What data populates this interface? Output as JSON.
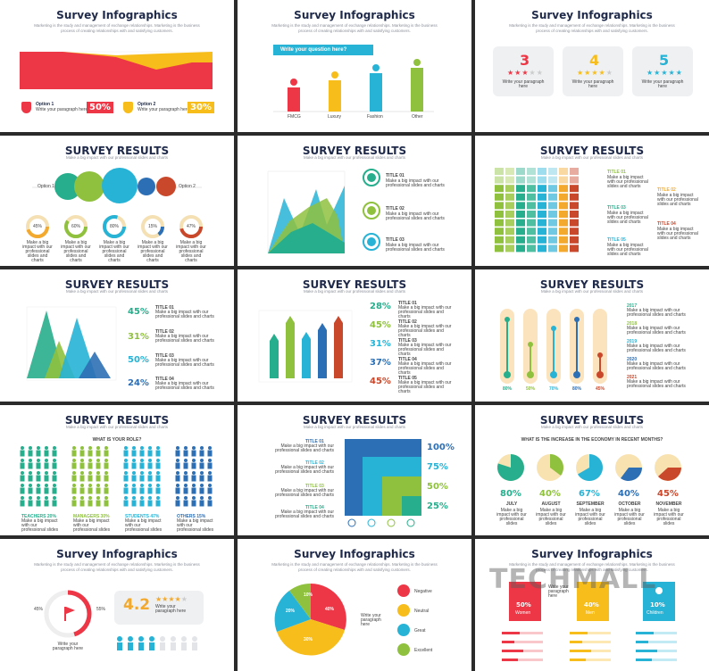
{
  "watermark": "TECHMALL",
  "slides": {
    "s1": {
      "title": "Survey Infographics",
      "sub": "Marketing is the study and management of exchange relationships. Marketing is the business process of creating relationships with and satisfying customers.",
      "opt1": "Option 1",
      "opt1_pct": "50%",
      "opt2": "Option 2",
      "opt2_pct": "30%",
      "desc": "Write your paragraph here"
    },
    "s2": {
      "title": "Survey Infographics",
      "sub": "Marketing is the study and management of exchange relationships. Marketing is the business process of creating relationships with and satisfying customers.",
      "question": "Write your question here?",
      "cats": [
        "FMCG",
        "Luxury",
        "Fashion",
        "Other"
      ],
      "values": [
        38,
        55,
        75,
        90
      ]
    },
    "s3": {
      "title": "Survey Infographics",
      "sub": "Marketing is the study and management of exchange relationships. Marketing is the business process of creating relationships with and satisfying customers.",
      "ratings": [
        "3",
        "4",
        "5"
      ],
      "desc": "Write your paragraph here"
    },
    "s4": {
      "title": "SURVEY RESULTS",
      "sub": "Make a big impact with our professional slides and charts",
      "opt1": "Option 1",
      "opt2": "Option 2",
      "pcts": [
        "45%",
        "60%",
        "80%",
        "15%",
        "47%"
      ],
      "desc": "Make a big impact with our professional slides and charts"
    },
    "s5": {
      "title": "SURVEY RESULTS",
      "sub": "Make a big impact with our professional slides and charts",
      "items": [
        "TITLE 01",
        "TITLE 02",
        "TITLE 03"
      ],
      "desc": "Make a big impact with our professional slides and charts"
    },
    "s6": {
      "title": "SURVEY RESULTS",
      "sub": "Make a big impact with our professional slides and charts",
      "items": [
        "TITLE 01",
        "TITLE 02",
        "TITLE 03",
        "TITLE 04",
        "TITLE 05"
      ],
      "desc": "Make a big impact with our professional slides and charts"
    },
    "s7": {
      "title": "SURVEY RESULTS",
      "sub": "Make a big impact with our professional slides and charts",
      "pcts": [
        "45%",
        "31%",
        "50%",
        "24%"
      ],
      "items": [
        "TITLE 01",
        "TITLE 02",
        "TITLE 03",
        "TITLE 04"
      ],
      "desc": "Make a big impact with our professional slides and charts"
    },
    "s8": {
      "title": "SURVEY RESULTS",
      "sub": "Make a big impact with our professional slides and charts",
      "pcts": [
        "28%",
        "45%",
        "31%",
        "37%",
        "45%"
      ],
      "items": [
        "TITLE 01",
        "TITLE 02",
        "TITLE 03",
        "TITLE 04",
        "TITLE 05"
      ],
      "desc": "Make a big impact with our professional slides and charts"
    },
    "s9": {
      "title": "SURVEY RESULTS",
      "sub": "Make a big impact with our professional slides and charts",
      "pcts": [
        "80%",
        "50%",
        "70%",
        "80%",
        "45%"
      ],
      "items": [
        "2017",
        "2018",
        "2019",
        "2020",
        "2021"
      ],
      "desc": "Make a big impact with our professional slides and charts"
    },
    "s10": {
      "title": "SURVEY RESULTS",
      "sub": "Make a big impact with our professional slides and charts",
      "question": "WHAT IS YOUR ROLE?",
      "groups": [
        "TEACHERS 20%",
        "MANAGERS 30%",
        "STUDENTS 47%",
        "OTHERS 15%"
      ],
      "desc": "Make a big impact with our professional slides"
    },
    "s11": {
      "title": "SURVEY RESULTS",
      "sub": "Make a big impact with our professional slides and charts",
      "pcts": [
        "100%",
        "75%",
        "50%",
        "25%"
      ],
      "items": [
        "TITLE 01",
        "TITLE 02",
        "TITLE 03",
        "TITLE 04"
      ],
      "desc": "Make a big impact with our professional slides and charts"
    },
    "s12": {
      "title": "SURVEY RESULTS",
      "sub": "Make a big impact with our professional slides and charts",
      "question": "WHAT IS THE INCREASE IN THE ECONOMY IN RECENT MONTHS?",
      "pcts": [
        "80%",
        "40%",
        "67%",
        "40%",
        "45%"
      ],
      "months": [
        "JULY",
        "AUGUST",
        "SEPTEMBER",
        "OCTOBER",
        "NOVEMBER"
      ],
      "desc": "Make a big impact with our professional slides"
    },
    "s13": {
      "title": "Survey Infographics",
      "sub": "Marketing is the study and management of exchange relationships. Marketing is the business process of creating relationships with and satisfying customers.",
      "rating": "4.2",
      "left": "45%",
      "right": "55%",
      "desc": "Write your paragraph here",
      "quote": "Write your paragraph here"
    },
    "s14": {
      "title": "Survey Infographics",
      "sub": "Marketing is the study and management of exchange relationships. Marketing is the business process of creating relationships with and satisfying customers.",
      "slices": [
        "10%",
        "20%",
        "30%",
        "40%"
      ],
      "legend": [
        "Negative",
        "Neutral",
        "Great",
        "Excellent"
      ],
      "desc": "Write your paragraph here"
    },
    "s15": {
      "title": "Survey Infographics",
      "sub": "Marketing is the study and management of exchange relationships. Marketing is the business process of creating relationships with and satisfying customers.",
      "cards": [
        {
          "pct": "50%",
          "label": "Women"
        },
        {
          "pct": "40%",
          "label": "Men"
        },
        {
          "pct": "10%",
          "label": "Children"
        }
      ],
      "desc": "Write your paragraph here"
    }
  }
}
